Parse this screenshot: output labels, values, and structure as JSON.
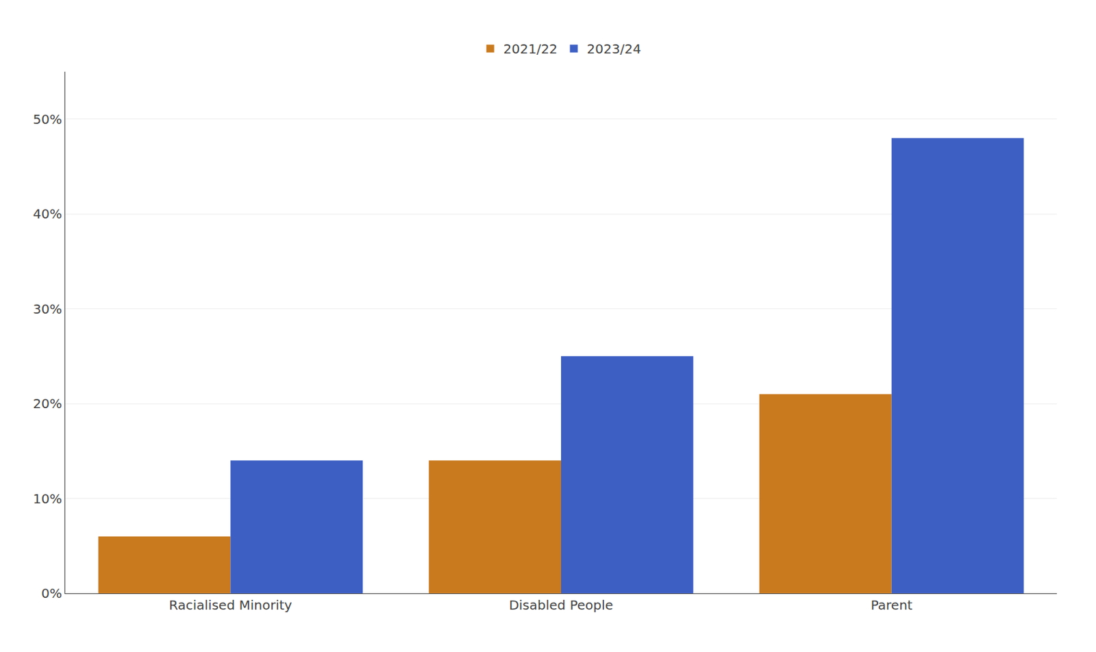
{
  "chart_data": {
    "type": "bar",
    "categories": [
      "Racialised Minority",
      "Disabled People",
      "Parent"
    ],
    "series": [
      {
        "name": "2021/22",
        "color": "#C97A1E",
        "values": [
          6,
          14,
          21
        ]
      },
      {
        "name": "2023/24",
        "color": "#3D5FC4",
        "values": [
          14,
          25,
          48
        ]
      }
    ],
    "ylim": [
      0,
      55
    ],
    "yticks": [
      {
        "value": 0,
        "label": "0%"
      },
      {
        "value": 10,
        "label": "10%"
      },
      {
        "value": 20,
        "label": "20%"
      },
      {
        "value": 30,
        "label": "30%"
      },
      {
        "value": 40,
        "label": "40%"
      },
      {
        "value": 50,
        "label": "50%"
      }
    ],
    "grid": true,
    "legend": "upper center"
  }
}
